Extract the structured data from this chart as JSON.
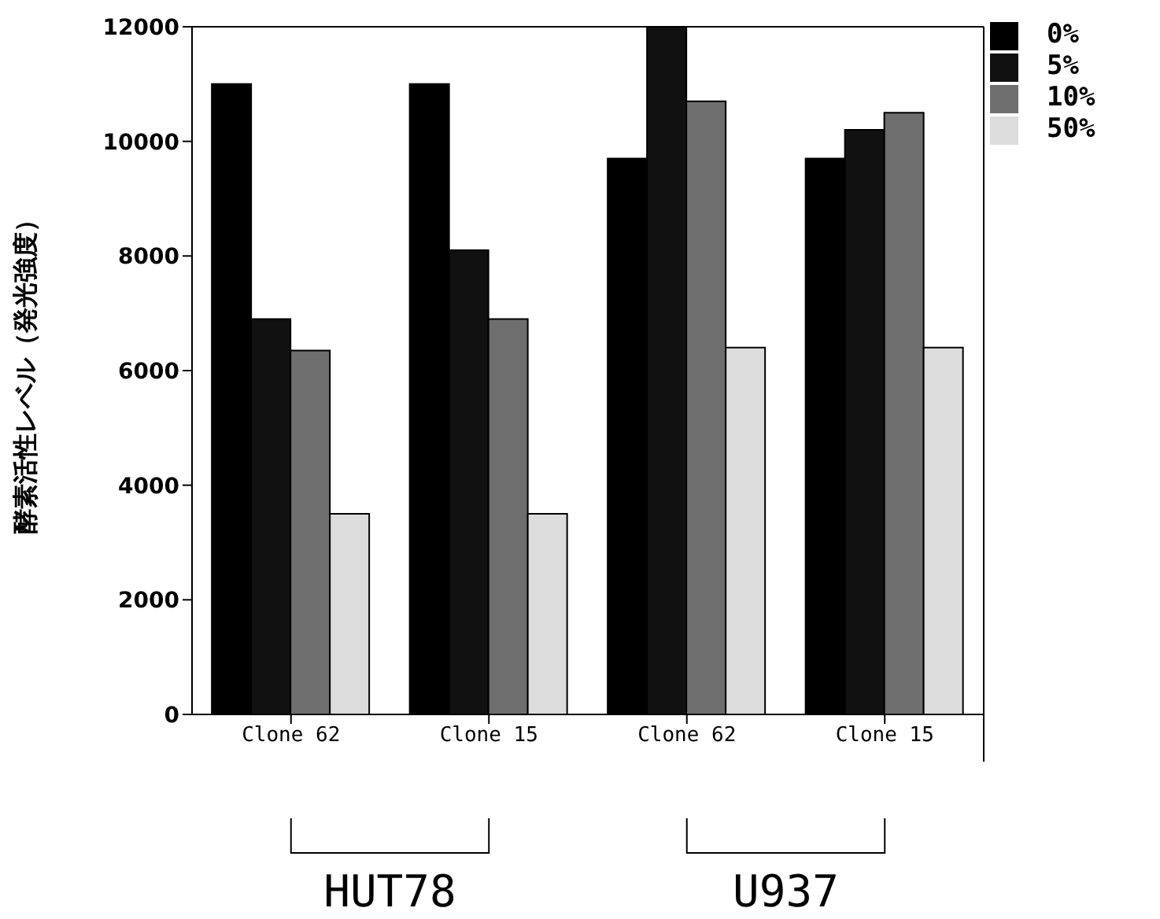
{
  "chart_data": {
    "type": "bar",
    "ylabel": "酵素活性レベル（発光強度）",
    "categories": [
      "Clone 62",
      "Clone 15",
      "Clone 62",
      "Clone 15"
    ],
    "series": [
      {
        "name": "0%",
        "color": "#000000",
        "values": [
          11000,
          11000,
          9700,
          9700
        ]
      },
      {
        "name": "5%",
        "color": "#111111",
        "values": [
          6900,
          8100,
          12000,
          10200
        ]
      },
      {
        "name": "10%",
        "color": "#6e6e6e",
        "values": [
          6350,
          6900,
          10700,
          10500
        ]
      },
      {
        "name": "50%",
        "color": "#dcdcdc",
        "values": [
          3500,
          3500,
          6400,
          6400
        ]
      }
    ],
    "ylim": [
      0,
      12000
    ],
    "yticks": [
      0,
      2000,
      4000,
      6000,
      8000,
      10000,
      12000
    ],
    "grid": false,
    "legend": "top right",
    "annotations": [
      "HUT78",
      "U937"
    ]
  }
}
